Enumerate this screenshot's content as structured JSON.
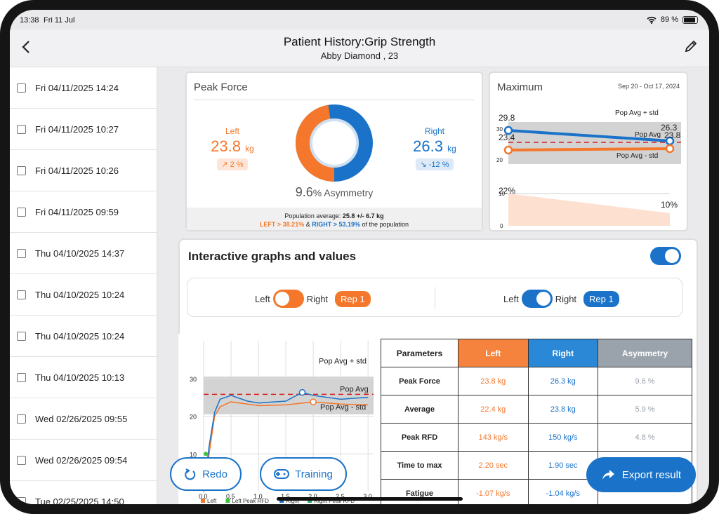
{
  "status": {
    "time": "13:38",
    "date": "Fri 11 Jul",
    "battery": "89 %"
  },
  "nav": {
    "title": "Patient History:Grip Strength",
    "subtitle": "Abby Diamond , 23"
  },
  "sessions": [
    "Fri 04/11/2025 14:24",
    "Fri 04/11/2025 10:27",
    "Fri 04/11/2025 10:26",
    "Fri 04/11/2025 09:59",
    "Thu 04/10/2025 14:37",
    "Thu 04/10/2025 10:24",
    "Thu 04/10/2025 10:24",
    "Thu 04/10/2025 10:13",
    "Wed 02/26/2025 09:55",
    "Wed 02/26/2025 09:54",
    "Tue 02/25/2025 14:50"
  ],
  "peak_force": {
    "title": "Peak Force",
    "left_label": "Left",
    "left_value": "23.8",
    "left_unit": "kg",
    "left_change": "↗ 2 %",
    "right_label": "Right",
    "right_value": "26.3",
    "right_unit": "kg",
    "right_change": "↘ -12 %",
    "asym_value": "9.6",
    "asym_label": "% Asymmetry",
    "left_share": 0.475,
    "pop_prefix": "Population average: ",
    "pop_value": "25.8 +/- 6.7 kg",
    "pop_left": "LEFT > 38.21%",
    "pop_and": " & ",
    "pop_right": "RIGHT > 53.19%",
    "pop_suffix": " of the population"
  },
  "maximum": {
    "title": "Maximum",
    "date_range": "Sep 20 - Oct 17, 2024",
    "labels": {
      "pop_avg_std": "Pop Avg + std",
      "pop_avg": "Pop Avg",
      "pop_avg_minus": "Pop Avg - std"
    },
    "y_ticks": [
      "30",
      "20"
    ],
    "right_start": "29.8",
    "right_end": "26.3",
    "left_start": "23.4",
    "left_end": "23.8",
    "fatigue_start": "22%",
    "fatigue_end": "10%",
    "fatigue_ticks": [
      "10",
      "0"
    ]
  },
  "interactive": {
    "title": "Interactive graphs and values",
    "sel1": {
      "left": "Left",
      "right": "Right",
      "rep": "Rep 1"
    },
    "sel2": {
      "left": "Left",
      "right": "Right",
      "rep": "Rep 1"
    }
  },
  "chart_data": {
    "type": "line",
    "xlabel": "",
    "ylabel": "",
    "ylim": [
      0,
      40
    ],
    "y_ticks": [
      "30",
      "20",
      "10"
    ],
    "x_ticks": [
      "0,0",
      "0,5",
      "1,0",
      "1,5",
      "2,0",
      "2,5",
      "3,0"
    ],
    "annotations": [
      "Pop Avg + std",
      "Pop Avg",
      "Pop Avg - std"
    ],
    "legend": [
      "Left",
      "Left Peak RFD",
      "Right",
      "Right Peak RFD"
    ],
    "series": [
      {
        "name": "Left",
        "x": [
          0.0,
          0.1,
          0.2,
          0.3,
          0.5,
          0.8,
          1.0,
          1.5,
          2.0,
          2.5,
          3.0
        ],
        "y": [
          0,
          10,
          20,
          22.5,
          23.8,
          23.2,
          22.8,
          23.0,
          23.8,
          23.2,
          23.0
        ]
      },
      {
        "name": "Right",
        "x": [
          0.0,
          0.1,
          0.2,
          0.3,
          0.5,
          0.8,
          1.0,
          1.5,
          1.8,
          2.0,
          2.5,
          3.0
        ],
        "y": [
          0,
          12,
          21,
          24.5,
          25.5,
          24.0,
          23.5,
          24.0,
          26.3,
          25.5,
          24.5,
          25.0
        ]
      }
    ]
  },
  "table": {
    "headers": [
      "Parameters",
      "Left",
      "Right",
      "Asymmetry"
    ],
    "rows": [
      [
        "Peak Force",
        "23.8 kg",
        "26.3 kg",
        "9.6 %"
      ],
      [
        "Average",
        "22.4 kg",
        "23.8 kg",
        "5.9 %"
      ],
      [
        "Peak RFD",
        "143 kg/s",
        "150 kg/s",
        "4.8 %"
      ],
      [
        "Time to max",
        "2.20 sec",
        "1.90 sec",
        ""
      ],
      [
        "Fatigue",
        "-1.07 kg/s",
        "-1.04 kg/s",
        ""
      ]
    ]
  },
  "buttons": {
    "redo": "Redo",
    "training": "Training",
    "export": "Export result"
  },
  "colors": {
    "left": "#f5772b",
    "right": "#1a73c9",
    "asym": "#9aa2ab"
  }
}
